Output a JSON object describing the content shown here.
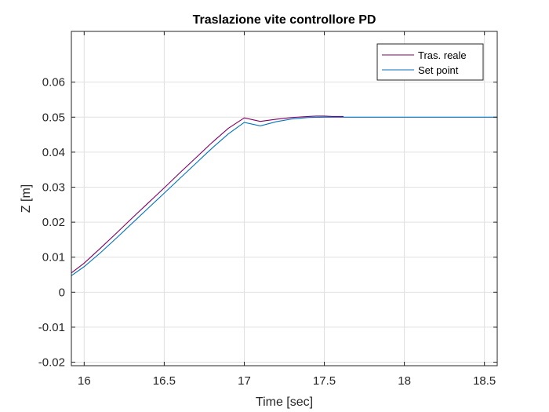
{
  "chart_data": {
    "type": "line",
    "title": "Traslazione vite controllore PD",
    "xlabel": "Time [sec]",
    "ylabel": "Z [m]",
    "xlim": [
      15.92,
      18.58
    ],
    "ylim": [
      -0.021,
      0.0745
    ],
    "xticks": [
      16,
      16.5,
      17,
      17.5,
      18,
      18.5
    ],
    "xtick_labels": [
      "16",
      "16.5",
      "17",
      "17.5",
      "18",
      "18.5"
    ],
    "yticks": [
      -0.02,
      -0.01,
      0,
      0.01,
      0.02,
      0.03,
      0.04,
      0.05,
      0.06
    ],
    "ytick_labels": [
      "-0.02",
      "-0.01",
      "0",
      "0.01",
      "0.02",
      "0.03",
      "0.04",
      "0.05",
      "0.06"
    ],
    "grid": true,
    "legend_position": "top-right",
    "series": [
      {
        "name": "Tras. reale",
        "color": "#7e0066",
        "x": [
          15.92,
          16.0,
          16.1,
          16.2,
          16.3,
          16.4,
          16.5,
          16.6,
          16.7,
          16.8,
          16.9,
          17.0,
          17.1,
          17.2,
          17.3,
          17.4,
          17.45,
          17.5,
          17.55,
          17.62
        ],
        "y": [
          0.0055,
          0.0083,
          0.0125,
          0.0168,
          0.0212,
          0.0255,
          0.0298,
          0.0342,
          0.0385,
          0.0428,
          0.0468,
          0.0498,
          0.0488,
          0.0494,
          0.0499,
          0.0502,
          0.0503,
          0.0503,
          0.0502,
          0.0502
        ]
      },
      {
        "name": "Set point",
        "color": "#0072bd",
        "x": [
          15.92,
          16.0,
          16.1,
          16.2,
          16.3,
          16.4,
          16.5,
          16.6,
          16.7,
          16.8,
          16.9,
          17.0,
          17.1,
          17.2,
          17.3,
          17.4,
          17.5,
          17.6,
          18.0,
          18.58
        ],
        "y": [
          0.0047,
          0.0073,
          0.0112,
          0.0154,
          0.0197,
          0.024,
          0.0283,
          0.0326,
          0.0369,
          0.0412,
          0.0452,
          0.0485,
          0.0475,
          0.0487,
          0.0495,
          0.0499,
          0.05,
          0.05,
          0.05,
          0.05
        ]
      }
    ]
  }
}
